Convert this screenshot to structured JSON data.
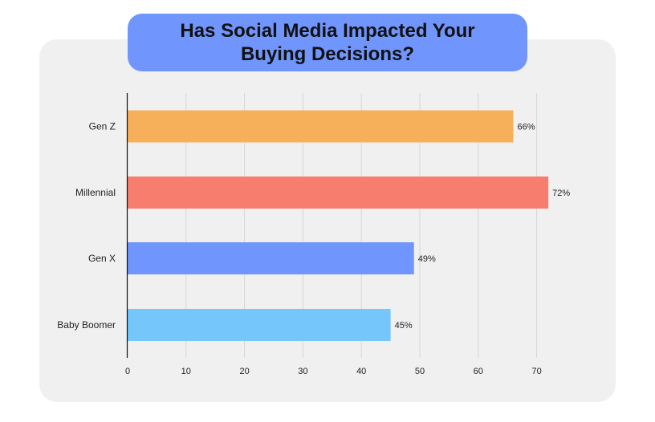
{
  "chart_data": {
    "type": "bar",
    "orientation": "horizontal",
    "title": "Has Social Media Impacted Your Buying Decisions?",
    "categories": [
      "Gen Z",
      "Millennial",
      "Gen X",
      "Baby Boomer"
    ],
    "values": [
      66,
      72,
      49,
      45
    ],
    "value_labels": [
      "66%",
      "72%",
      "49%",
      "45%"
    ],
    "colors": [
      "#f7b05a",
      "#f77e6f",
      "#7095fc",
      "#74c6fb"
    ],
    "xticks": [
      0,
      10,
      20,
      30,
      40,
      50,
      60,
      70
    ],
    "xlim": [
      0,
      80
    ],
    "grid": true,
    "xlabel": "",
    "ylabel": ""
  },
  "colors": {
    "panel": "#f0f0f0",
    "title_box": "#7095fc",
    "gridline": "#d6d6d6",
    "axis": "#111111"
  }
}
